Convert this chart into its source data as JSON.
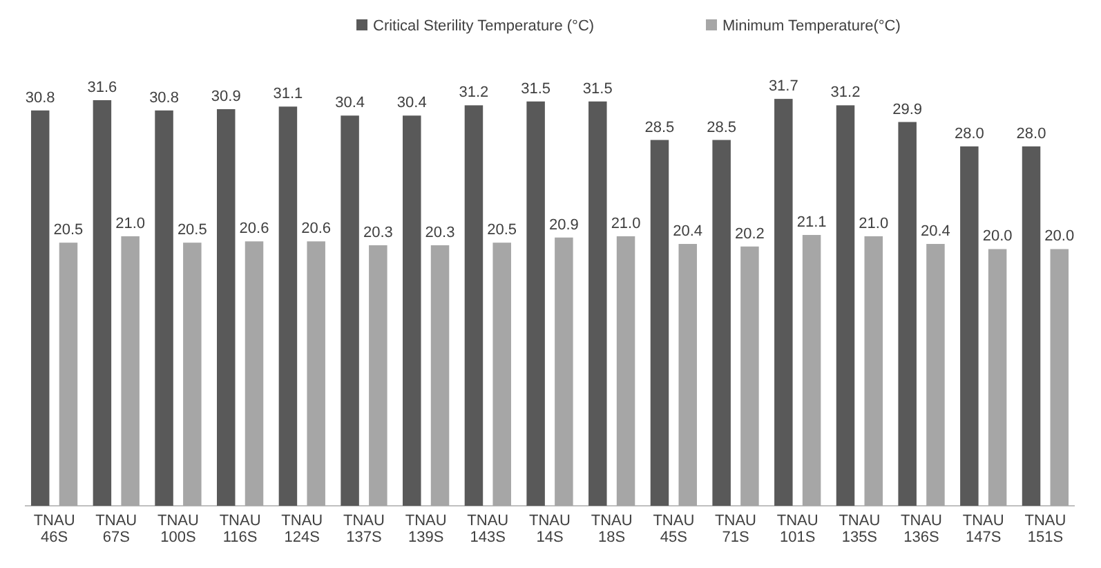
{
  "chart_data": {
    "type": "bar",
    "legend": "top",
    "categories": [
      "TNAU 46S",
      "TNAU 67S",
      "TNAU 100S",
      "TNAU 116S",
      "TNAU 124S",
      "TNAU 137S",
      "TNAU 139S",
      "TNAU 143S",
      "TNAU 14S",
      "TNAU 18S",
      "TNAU 45S",
      "TNAU 71S",
      "TNAU 101S",
      "TNAU 135S",
      "TNAU 136S",
      "TNAU 147S",
      "TNAU 151S"
    ],
    "series": [
      {
        "name": "Critical Sterility Temperature (°C)",
        "color": "#595959",
        "values": [
          30.8,
          31.6,
          30.8,
          30.9,
          31.1,
          30.4,
          30.4,
          31.2,
          31.5,
          31.5,
          28.5,
          28.5,
          31.7,
          31.2,
          29.9,
          28.0,
          28.0
        ],
        "value_labels": [
          "30.8",
          "31.6",
          "30.8",
          "30.9",
          "31.1",
          "30.4",
          "30.4",
          "31.2",
          "31.5",
          "31.5",
          "28.5",
          "28.5",
          "31.7",
          "31.2",
          "29.9",
          "28.0",
          "28.0"
        ]
      },
      {
        "name": "Minimum Temperature(°C)",
        "color": "#a6a6a6",
        "values": [
          20.5,
          21.0,
          20.5,
          20.6,
          20.6,
          20.3,
          20.3,
          20.5,
          20.9,
          21.0,
          20.4,
          20.2,
          21.1,
          21.0,
          20.4,
          20.0,
          20.0
        ],
        "value_labels": [
          "20.5",
          "21.0",
          "20.5",
          "20.6",
          "20.6",
          "20.3",
          "20.3",
          "20.5",
          "20.9",
          "21.0",
          "20.4",
          "20.2",
          "21.1",
          "21.0",
          "20.4",
          "20.0",
          "20.0"
        ]
      }
    ]
  }
}
